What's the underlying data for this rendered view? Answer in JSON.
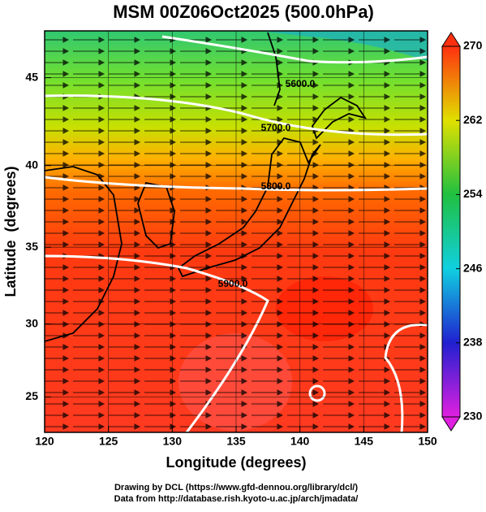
{
  "chart_data": {
    "type": "map",
    "title": "MSM 00Z06Oct2025 (500.0hPa)",
    "x_label": "Longitude (degrees)",
    "y_label": "Latitude  (degrees)",
    "xlim": [
      120,
      150
    ],
    "xticks": [
      120,
      125,
      130,
      135,
      140,
      145,
      150
    ],
    "ylim": [
      22.5,
      47.5
    ],
    "yticks": [
      25,
      30,
      35,
      40,
      45
    ],
    "grid": true,
    "projection": "mercator",
    "contour_labels": [
      "5600.0",
      "5700.0",
      "5800.0",
      "5900.0"
    ],
    "colorbar": {
      "lim": [
        230,
        270
      ],
      "ticks": [
        230,
        238,
        246,
        254,
        262,
        270
      ],
      "colors": [
        "#e020e0",
        "#2020d0",
        "#10d0e0",
        "#20c040",
        "#e0e000",
        "#ff3010"
      ]
    },
    "credits": [
      "Drawing by DCL (https://www.gfd-dennou.org/library/dcl/)",
      "Data from http://database.rish.kyoto-u.ac.jp/arch/jmadata/"
    ]
  }
}
